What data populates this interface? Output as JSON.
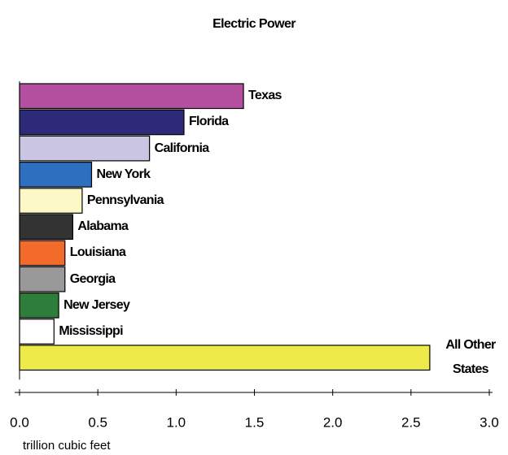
{
  "chart_data": {
    "type": "barh",
    "title": "Electric Power",
    "categories": [
      "Texas",
      "Florida",
      "California",
      "New York",
      "Pennsylvania",
      "Alabama",
      "Louisiana",
      "Georgia",
      "New Jersey",
      "Mississippi",
      "All Other States"
    ],
    "values": [
      1.43,
      1.05,
      0.83,
      0.46,
      0.4,
      0.34,
      0.29,
      0.29,
      0.25,
      0.22,
      2.62
    ],
    "colors": [
      "#b4509f",
      "#2e2a7a",
      "#c9c5e3",
      "#2f6fbf",
      "#fdf8c8",
      "#333333",
      "#f26b2a",
      "#999999",
      "#2e7d3a",
      "#ffffff",
      "#eeea4a"
    ],
    "xlim": [
      0,
      3.0
    ],
    "xticks": [
      {
        "value": 0,
        "label": "0.0"
      },
      0.5,
      {
        "value": 1.0,
        "label": "1.0"
      },
      1.5,
      {
        "value": 2.0,
        "label": "2.0"
      },
      2.5,
      {
        "value": 3.0,
        "label": "3.0"
      }
    ],
    "xlabel": "trillion cubic feet"
  }
}
